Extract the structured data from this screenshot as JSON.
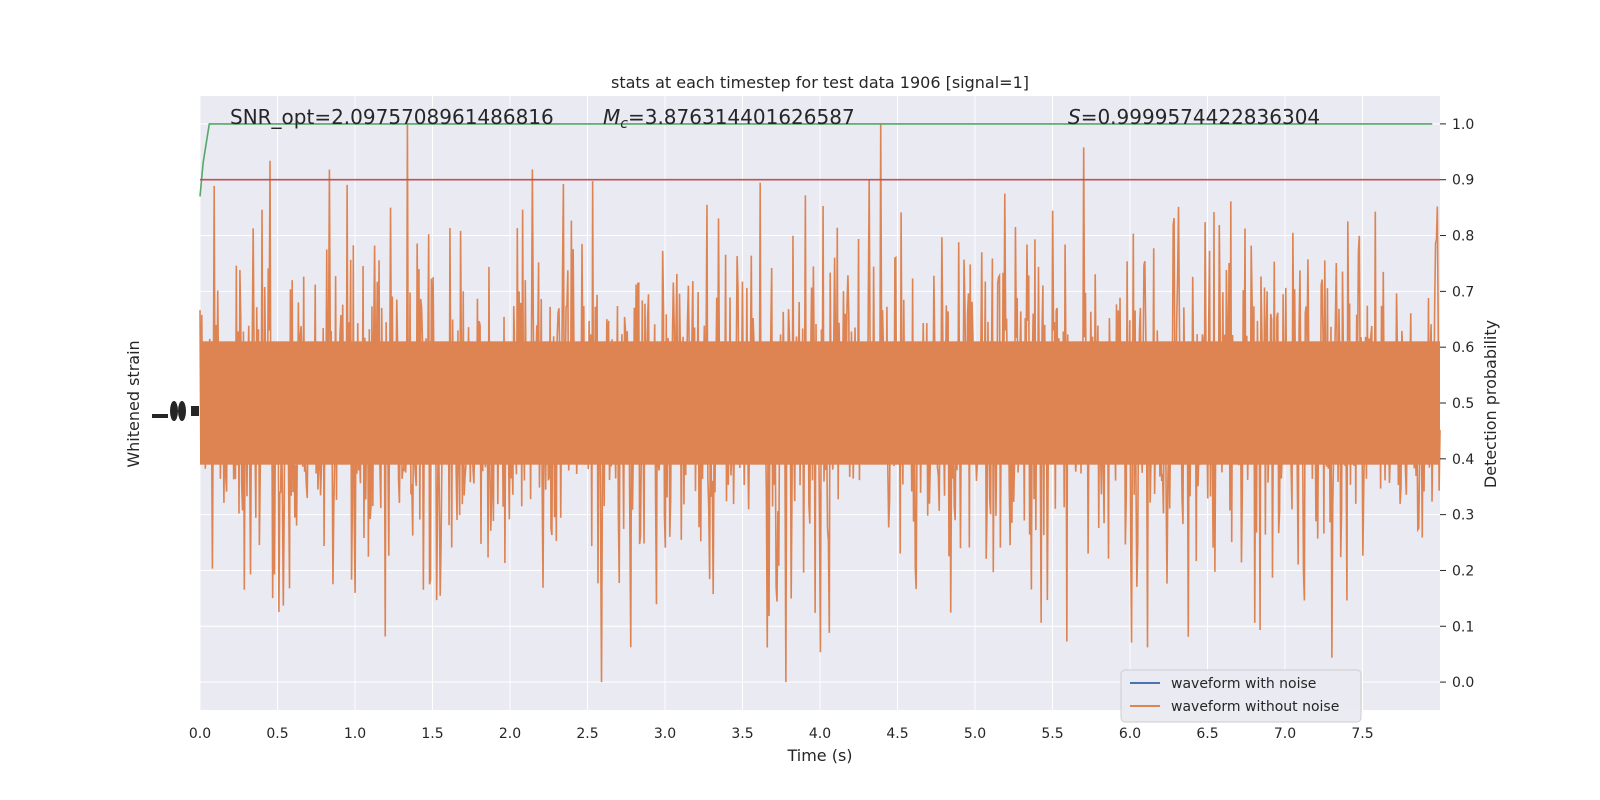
{
  "chart_data": {
    "type": "line",
    "title": "stats at each timestep for test data 1906 [signal=1]",
    "xlabel": "Time (s)",
    "ylabel_left": "Whitened strain",
    "ylabel_right": "Detection probability",
    "xlim": [
      0.0,
      8.0
    ],
    "ylim_right": [
      -0.05,
      1.05
    ],
    "x_ticks": [
      "0.0",
      "0.5",
      "1.0",
      "1.5",
      "2.0",
      "2.5",
      "3.0",
      "3.5",
      "4.0",
      "4.5",
      "5.0",
      "5.5",
      "6.0",
      "6.5",
      "7.0",
      "7.5"
    ],
    "x_tick_values": [
      0.0,
      0.5,
      1.0,
      1.5,
      2.0,
      2.5,
      3.0,
      3.5,
      4.0,
      4.5,
      5.0,
      5.5,
      6.0,
      6.5,
      7.0,
      7.5
    ],
    "y_right_ticks": [
      "0.0",
      "0.1",
      "0.2",
      "0.3",
      "0.4",
      "0.5",
      "0.6",
      "0.7",
      "0.8",
      "0.9",
      "1.0"
    ],
    "y_right_tick_values": [
      0.0,
      0.1,
      0.2,
      0.3,
      0.4,
      0.5,
      0.6,
      0.7,
      0.8,
      0.9,
      1.0
    ],
    "grid": true,
    "annotations": {
      "snr": "SNR_opt=2.0975708961486816",
      "mc_symbol": "M",
      "mc_subscript": "c",
      "mc_value": "=3.876314401626587",
      "s_symbol": "S",
      "s_value": "=0.9999574422836304"
    },
    "legend": {
      "placement": "lower-right",
      "entries": [
        {
          "label": "waveform with noise",
          "color": "#4c72b0"
        },
        {
          "label": "waveform without noise",
          "color": "#dd8452"
        }
      ]
    },
    "series": [
      {
        "color": "#dd8452",
        "kind": "noise-band",
        "center": 0.5,
        "typical_spread": 0.17,
        "max": 1.0,
        "min": 0.0
      },
      {
        "color": "#55a868",
        "kind": "probability",
        "x": [
          0.0,
          0.02,
          0.06,
          7.95
        ],
        "y": [
          0.87,
          0.93,
          1.0,
          1.0
        ]
      },
      {
        "color": "#c44e52",
        "kind": "threshold",
        "y": 0.9
      }
    ],
    "colors": {
      "background": "#eaeaf2",
      "grid": "#ffffff"
    }
  }
}
